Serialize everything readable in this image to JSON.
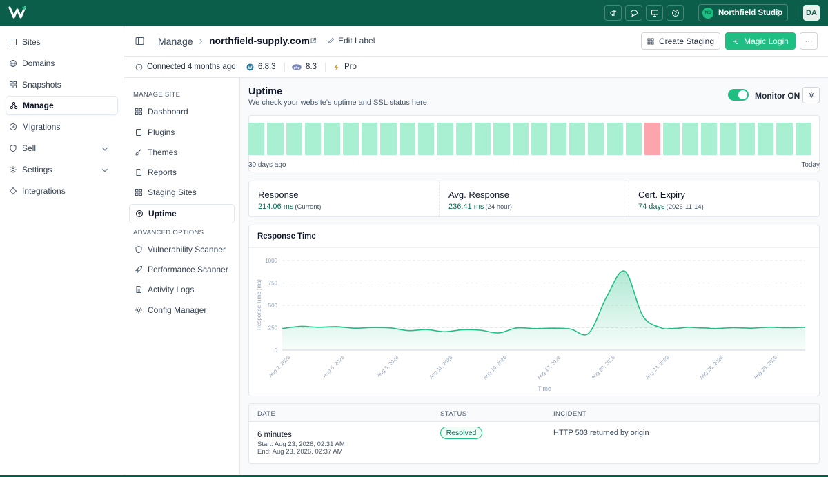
{
  "topbar": {
    "team_initials": "NS",
    "team_name": "Northfield Studio",
    "user_initials": "DA",
    "icons": [
      "megaphone-icon",
      "chat-icon",
      "monitor-icon",
      "help-icon"
    ]
  },
  "sidebar": {
    "items": [
      {
        "label": "Sites",
        "icon": "sites-icon"
      },
      {
        "label": "Domains",
        "icon": "globe-icon"
      },
      {
        "label": "Snapshots",
        "icon": "snapshots-icon"
      },
      {
        "label": "Manage",
        "icon": "manage-icon",
        "active": true
      },
      {
        "label": "Migrations",
        "icon": "migrations-icon"
      },
      {
        "label": "Sell",
        "icon": "shield-icon",
        "expandable": true
      },
      {
        "label": "Settings",
        "icon": "gear-icon",
        "expandable": true
      },
      {
        "label": "Integrations",
        "icon": "integrations-icon"
      }
    ]
  },
  "header": {
    "section": "Manage",
    "site": "northfield-supply.com",
    "edit_label": "Edit Label",
    "create_staging": "Create Staging",
    "magic_login": "Magic Login",
    "more": "···"
  },
  "infobar": {
    "connected": "Connected 4 months ago",
    "wp_version": "6.8.3",
    "php_version": "8.3",
    "plan": "Pro"
  },
  "subnav": {
    "manage_label": "MANAGE SITE",
    "manage_items": [
      {
        "label": "Dashboard",
        "icon": "dashboard-icon"
      },
      {
        "label": "Plugins",
        "icon": "plugins-icon"
      },
      {
        "label": "Themes",
        "icon": "brush-icon"
      },
      {
        "label": "Reports",
        "icon": "reports-icon"
      },
      {
        "label": "Staging Sites",
        "icon": "staging-icon"
      },
      {
        "label": "Uptime",
        "icon": "uptime-icon",
        "active": true
      }
    ],
    "advanced_label": "ADVANCED OPTIONS",
    "advanced_items": [
      {
        "label": "Vulnerability Scanner",
        "icon": "shield-icon"
      },
      {
        "label": "Performance Scanner",
        "icon": "rocket-icon"
      },
      {
        "label": "Activity Logs",
        "icon": "logs-icon"
      },
      {
        "label": "Config Manager",
        "icon": "config-icon"
      }
    ]
  },
  "uptime": {
    "title": "Uptime",
    "description": "We check your website's uptime and SSL status here.",
    "monitor_label": "Monitor ON",
    "monitor_on": true,
    "days": [
      "up",
      "up",
      "up",
      "up",
      "up",
      "up",
      "up",
      "up",
      "up",
      "up",
      "up",
      "up",
      "up",
      "up",
      "up",
      "up",
      "up",
      "up",
      "up",
      "up",
      "up",
      "down",
      "up",
      "up",
      "up",
      "up",
      "up",
      "up",
      "up",
      "up"
    ],
    "start_label": "30 days ago",
    "end_label": "Today"
  },
  "stats": [
    {
      "title": "Response",
      "value": "214.06 ms",
      "sub": "(Current)"
    },
    {
      "title": "Avg. Response",
      "value": "236.41 ms",
      "sub": "(24 hour)"
    },
    {
      "title": "Cert. Expiry",
      "value": "74 days",
      "sub": "(2026-11-14)"
    }
  ],
  "chart_title": "Response Time",
  "chart_data": {
    "type": "area",
    "title": "Response Time",
    "xlabel": "Time",
    "ylabel": "Response Time (ms)",
    "ylim": [
      0,
      1000
    ],
    "yticks": [
      0,
      250,
      500,
      750,
      1000
    ],
    "xtick_labels": [
      "Aug 2, 2026",
      "Aug 5, 2026",
      "Aug 8, 2026",
      "Aug 11, 2026",
      "Aug 14, 2026",
      "Aug 17, 2026",
      "Aug 20, 2026",
      "Aug 23, 2026",
      "Aug 26, 2026",
      "Aug 29, 2026"
    ],
    "x": [
      0,
      1,
      2,
      3,
      4,
      5,
      6,
      7,
      8,
      9,
      10,
      11,
      12,
      13,
      14,
      15,
      16,
      17,
      18,
      19,
      20,
      21,
      21.5,
      22,
      22.5,
      23,
      23.6,
      24,
      25,
      26,
      27,
      28,
      29
    ],
    "values": [
      240,
      265,
      255,
      262,
      245,
      252,
      248,
      218,
      230,
      205,
      228,
      222,
      192,
      248,
      240,
      245,
      235,
      190,
      600,
      880,
      380,
      250,
      240,
      245,
      255,
      250,
      245,
      240,
      250,
      245,
      255,
      250,
      255
    ],
    "grid": true
  },
  "incidents": {
    "headers": {
      "date": "DATE",
      "status": "STATUS",
      "incident": "INCIDENT"
    },
    "rows": [
      {
        "duration": "6 minutes",
        "start": "Start: Aug 23, 2026, 02:31 AM",
        "end": "End: Aug 23, 2026, 02:37 AM",
        "status": "Resolved",
        "incident": "HTTP 503 returned by origin"
      }
    ]
  },
  "colors": {
    "brand": "#0b5e4a",
    "accent": "#1fbf84",
    "up": "#a8f0d1",
    "down": "#fca5ad"
  }
}
